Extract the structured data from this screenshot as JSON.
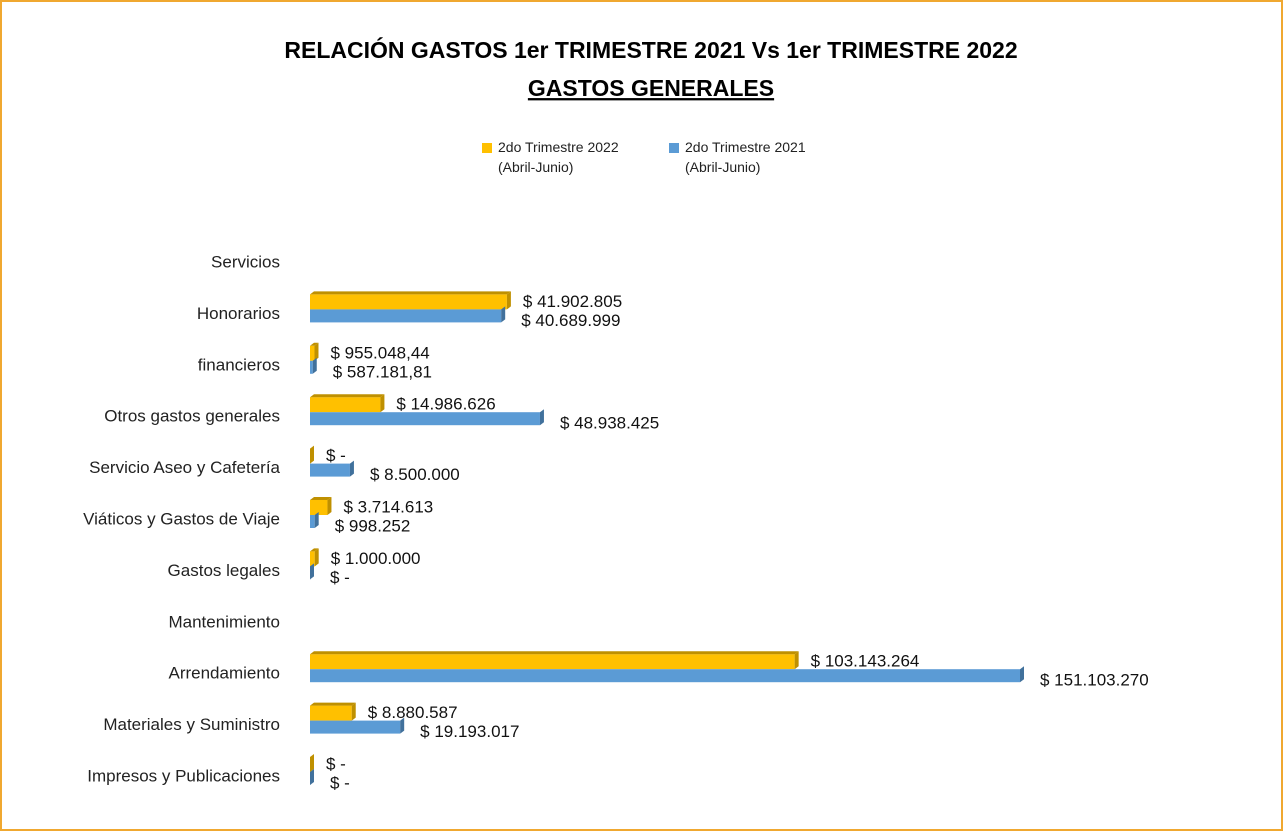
{
  "chart_data": {
    "type": "bar",
    "orientation": "horizontal",
    "title": "RELACIÓN GASTOS 1er TRIMESTRE 2021 Vs 1er TRIMESTRE 2022",
    "subtitle": "GASTOS GENERALES",
    "categories": [
      "Servicios",
      "Honorarios",
      "financieros",
      "Otros gastos generales",
      "Servicio Aseo y Cafetería",
      "Viáticos y Gastos de Viaje",
      "Gastos legales",
      "Mantenimiento",
      "Arrendamiento",
      "Materiales y Suministro",
      "Impresos y Publicaciones"
    ],
    "series": [
      {
        "name": "2do Trimestre 2022 (Abril-Junio)",
        "color": "#ffc000",
        "values": [
          null,
          41902805,
          955048.44,
          14986626,
          0,
          3714613,
          1000000,
          null,
          103143264,
          8880587,
          0
        ],
        "value_labels": [
          null,
          "$ 41.902.805",
          "$ 955.048,44",
          "$ 14.986.626",
          "$ -",
          "$ 3.714.613",
          "$ 1.000.000",
          null,
          "$ 103.143.264",
          "$ 8.880.587",
          "$ -"
        ]
      },
      {
        "name": "2do Trimestre 2021 (Abril-Junio)",
        "color": "#5b9bd5",
        "values": [
          null,
          40689999,
          587181.81,
          48938425,
          8500000,
          998252,
          0,
          null,
          151103270,
          19193017,
          0
        ],
        "value_labels": [
          null,
          "$ 40.689.999",
          "$ 587.181,81",
          "$ 48.938.425",
          "$ 8.500.000",
          "$ 998.252",
          "$ -",
          null,
          "$ 151.103.270",
          "$ 19.193.017",
          "$ -"
        ]
      }
    ]
  }
}
